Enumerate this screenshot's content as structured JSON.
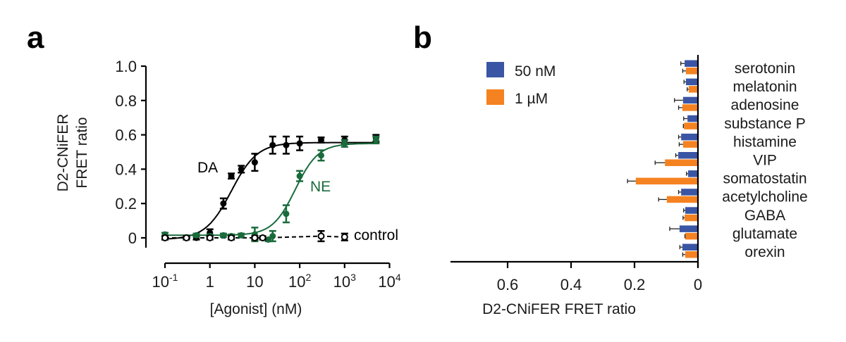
{
  "panels": {
    "a": {
      "letter": "a"
    },
    "b": {
      "letter": "b"
    }
  },
  "colors": {
    "DA": "#000000",
    "NE": "#1a6b3c",
    "control": "#000000",
    "bar_50nM": "#3a55a4",
    "bar_1uM": "#f58220",
    "axis": "#000000"
  },
  "chart_data": [
    {
      "type": "scatter",
      "panel": "a",
      "title": "",
      "xlabel": "[Agonist] (nM)",
      "ylabel": "D2-CNiFER FRET ratio",
      "ylabel_lines": [
        "D2-CNiFER",
        "FRET ratio"
      ],
      "xscale": "log",
      "xlim": [
        0.1,
        10000
      ],
      "ylim": [
        0,
        1.0
      ],
      "x_ticks": [
        0.1,
        1,
        10,
        100,
        1000,
        10000
      ],
      "x_tick_labels": [
        {
          "base": "10",
          "sup": "-1"
        },
        {
          "base": "1",
          "sup": ""
        },
        {
          "base": "10",
          "sup": ""
        },
        {
          "base": "10",
          "sup": "2"
        },
        {
          "base": "10",
          "sup": "3"
        },
        {
          "base": "10",
          "sup": "4"
        }
      ],
      "y_ticks": [
        0,
        0.2,
        0.4,
        0.6,
        0.8,
        1.0
      ],
      "y_tick_labels": [
        "0",
        "0.2",
        "0.4",
        "0.6",
        "0.8",
        "1.0"
      ],
      "grid": false,
      "series": [
        {
          "name": "DA",
          "label": "DA",
          "marker": "filled-circle",
          "fit": {
            "bottom": -0.01,
            "top": 0.555,
            "ec50": 3.0,
            "hill": 1.5
          },
          "x": [
            0.1,
            0.5,
            1,
            2,
            3,
            5,
            10,
            25,
            50,
            100,
            300,
            1000,
            5000
          ],
          "y": [
            0.0,
            0.0,
            0.03,
            0.2,
            0.36,
            0.4,
            0.44,
            0.54,
            0.54,
            0.55,
            0.57,
            0.57,
            0.58
          ],
          "err": [
            0.01,
            0.01,
            0.02,
            0.03,
            0.015,
            0.02,
            0.05,
            0.05,
            0.05,
            0.04,
            0.015,
            0.02,
            0.02
          ]
        },
        {
          "name": "NE",
          "label": "NE",
          "marker": "filled-circle",
          "fit": {
            "bottom": 0.015,
            "top": 0.55,
            "ec50": 80,
            "hill": 1.7
          },
          "x": [
            0.1,
            0.5,
            1,
            2,
            3,
            5,
            10,
            20,
            25,
            50,
            100,
            300,
            1000,
            5000
          ],
          "y": [
            0.02,
            0.015,
            0.01,
            0.015,
            0.01,
            0.015,
            0.02,
            -0.01,
            0.01,
            0.14,
            0.36,
            0.48,
            0.55,
            0.57
          ],
          "err": [
            0.01,
            0.01,
            0.01,
            0.01,
            0.01,
            0.01,
            0.04,
            0.01,
            0.03,
            0.05,
            0.03,
            0.03,
            0.02,
            0.02
          ]
        },
        {
          "name": "control",
          "label": "control",
          "marker": "open-circle",
          "line": "dashed",
          "x": [
            0.1,
            0.3,
            1,
            3,
            10,
            15,
            300,
            1000
          ],
          "y": [
            0.0,
            0.0,
            0.0,
            0.0,
            0.0,
            0.0,
            0.01,
            0.005
          ],
          "err": [
            0.01,
            0.01,
            0.01,
            0.01,
            0.01,
            0.01,
            0.03,
            0.02
          ]
        }
      ]
    },
    {
      "type": "bar",
      "panel": "b",
      "orientation": "horizontal",
      "x_direction": "reversed",
      "title": "",
      "xlabel": "D2-CNiFER FRET ratio",
      "ylabel": "",
      "xlim": [
        0,
        0.78
      ],
      "x_ticks": [
        0,
        0.2,
        0.4,
        0.6
      ],
      "x_tick_labels": [
        "0",
        "0.2",
        "0.4",
        "0.6"
      ],
      "grid": false,
      "legend": "top-left",
      "categories": [
        "serotonin",
        "melatonin",
        "adenosine",
        "substance P",
        "histamine",
        "VIP",
        "somatostatin",
        "acetylcholine",
        "GABA",
        "glutamate",
        "orexin"
      ],
      "series": [
        {
          "name": "50 nM",
          "values": [
            0.042,
            0.038,
            0.047,
            0.033,
            0.053,
            0.062,
            0.031,
            0.053,
            0.04,
            0.058,
            0.049
          ],
          "err": [
            0.012,
            0.006,
            0.027,
            0.012,
            0.008,
            0.008,
            0.005,
            0.008,
            0.005,
            0.031,
            0.008
          ]
        },
        {
          "name": "1 µM",
          "values": [
            0.038,
            0.029,
            0.049,
            0.044,
            0.047,
            0.104,
            0.196,
            0.098,
            0.042,
            0.04,
            0.04
          ],
          "err": [
            0.01,
            0.005,
            0.012,
            0.002,
            0.012,
            0.031,
            0.026,
            0.026,
            0.005,
            0.001,
            0.008
          ]
        }
      ]
    }
  ]
}
